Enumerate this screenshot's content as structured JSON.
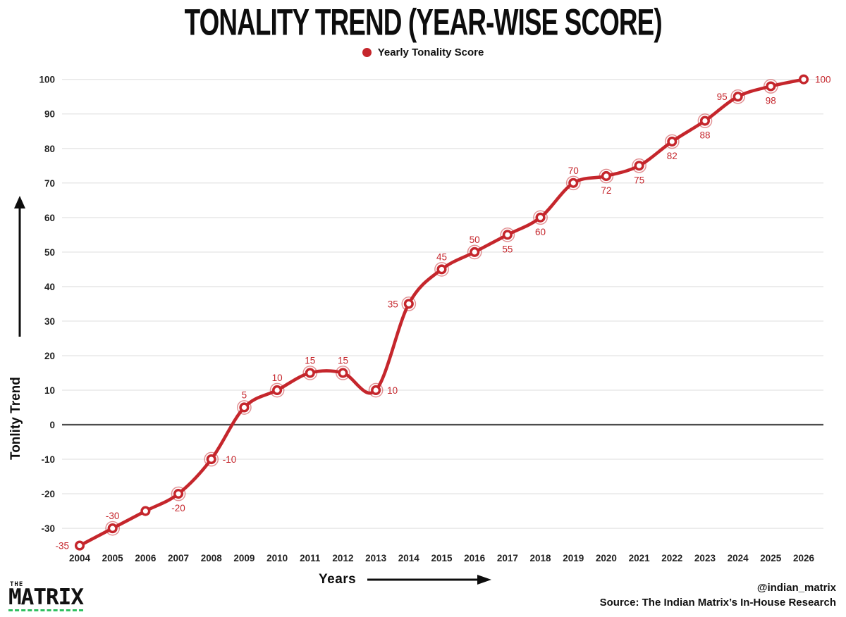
{
  "header": {
    "title": "TONALITY TREND (YEAR-WISE SCORE)"
  },
  "legend": {
    "items": [
      {
        "label": "Yearly Tonality Score",
        "color": "#c5262c"
      }
    ]
  },
  "colors": {
    "accent_red": "#c5262c",
    "grid": "#e8e8e8",
    "zero_line": "#4d4d4d",
    "text_dark": "#1a1a1a",
    "logo_underline_green": "#2fbf5f"
  },
  "chart_data": {
    "type": "line",
    "title": "TONALITY TREND (YEAR-WISE SCORE)",
    "xlabel": "Years",
    "ylabel": "Tonlity Trend",
    "legend": [
      "Yearly Tonality Score"
    ],
    "legend_position": "top-center",
    "grid": "horizontal-only",
    "line_color": "#c5262c",
    "line_style": "smooth-spline",
    "marker": "white-circle-red-ring",
    "ylim": [
      -38,
      104
    ],
    "yticks": [
      100,
      90,
      80,
      70,
      60,
      50,
      40,
      30,
      20,
      10,
      0,
      -10,
      -20,
      -30
    ],
    "zero_line": true,
    "categories": [
      2004,
      2005,
      2006,
      2007,
      2008,
      2009,
      2010,
      2011,
      2012,
      2013,
      2014,
      2015,
      2016,
      2017,
      2018,
      2019,
      2020,
      2021,
      2022,
      2023,
      2024,
      2025,
      2026
    ],
    "series": [
      {
        "name": "Yearly Tonality Score",
        "values": [
          -35,
          -30,
          -25,
          -20,
          -10,
          5,
          10,
          15,
          15,
          10,
          35,
          45,
          50,
          55,
          60,
          70,
          72,
          75,
          82,
          88,
          95,
          98,
          100
        ]
      }
    ],
    "points": [
      {
        "year": "2004",
        "value": -35,
        "label": "-35",
        "label_pos": "left",
        "halo": false
      },
      {
        "year": "2005",
        "value": -30,
        "label": "-30",
        "label_pos": "above",
        "halo": true
      },
      {
        "year": "2006",
        "value": -25,
        "label": null,
        "label_pos": null,
        "halo": false
      },
      {
        "year": "2007",
        "value": -20,
        "label": "-20",
        "label_pos": "below",
        "halo": true
      },
      {
        "year": "2008",
        "value": -10,
        "label": "-10",
        "label_pos": "right",
        "halo": true
      },
      {
        "year": "2009",
        "value": 5,
        "label": "5",
        "label_pos": "above",
        "halo": true
      },
      {
        "year": "2010",
        "value": 10,
        "label": "10",
        "label_pos": "above",
        "halo": true
      },
      {
        "year": "2011",
        "value": 15,
        "label": "15",
        "label_pos": "above",
        "halo": true
      },
      {
        "year": "2012",
        "value": 15,
        "label": "15",
        "label_pos": "above",
        "halo": true
      },
      {
        "year": "2013",
        "value": 10,
        "label": "10",
        "label_pos": "right",
        "halo": true
      },
      {
        "year": "2014",
        "value": 35,
        "label": "35",
        "label_pos": "left",
        "halo": true
      },
      {
        "year": "2015",
        "value": 45,
        "label": "45",
        "label_pos": "above",
        "halo": true
      },
      {
        "year": "2016",
        "value": 50,
        "label": "50",
        "label_pos": "above",
        "halo": true
      },
      {
        "year": "2017",
        "value": 55,
        "label": "55",
        "label_pos": "below",
        "halo": true
      },
      {
        "year": "2018",
        "value": 60,
        "label": "60",
        "label_pos": "below",
        "halo": true
      },
      {
        "year": "2019",
        "value": 70,
        "label": "70",
        "label_pos": "above",
        "halo": true
      },
      {
        "year": "2020",
        "value": 72,
        "label": "72",
        "label_pos": "below",
        "halo": true
      },
      {
        "year": "2021",
        "value": 75,
        "label": "75",
        "label_pos": "below",
        "halo": true
      },
      {
        "year": "2022",
        "value": 82,
        "label": "82",
        "label_pos": "below",
        "halo": true
      },
      {
        "year": "2023",
        "value": 88,
        "label": "88",
        "label_pos": "below",
        "halo": true
      },
      {
        "year": "2024",
        "value": 95,
        "label": "95",
        "label_pos": "left",
        "halo": true
      },
      {
        "year": "2025",
        "value": 98,
        "label": "98",
        "label_pos": "below",
        "halo": true
      },
      {
        "year": "2026",
        "value": 100,
        "label": "100",
        "label_pos": "right",
        "halo": false
      }
    ]
  },
  "footer": {
    "logo_top": "THE",
    "logo_name": "MATRIX",
    "handle": "@indian_matrix",
    "source": "Source: The Indian Matrix’s In-House Research"
  }
}
